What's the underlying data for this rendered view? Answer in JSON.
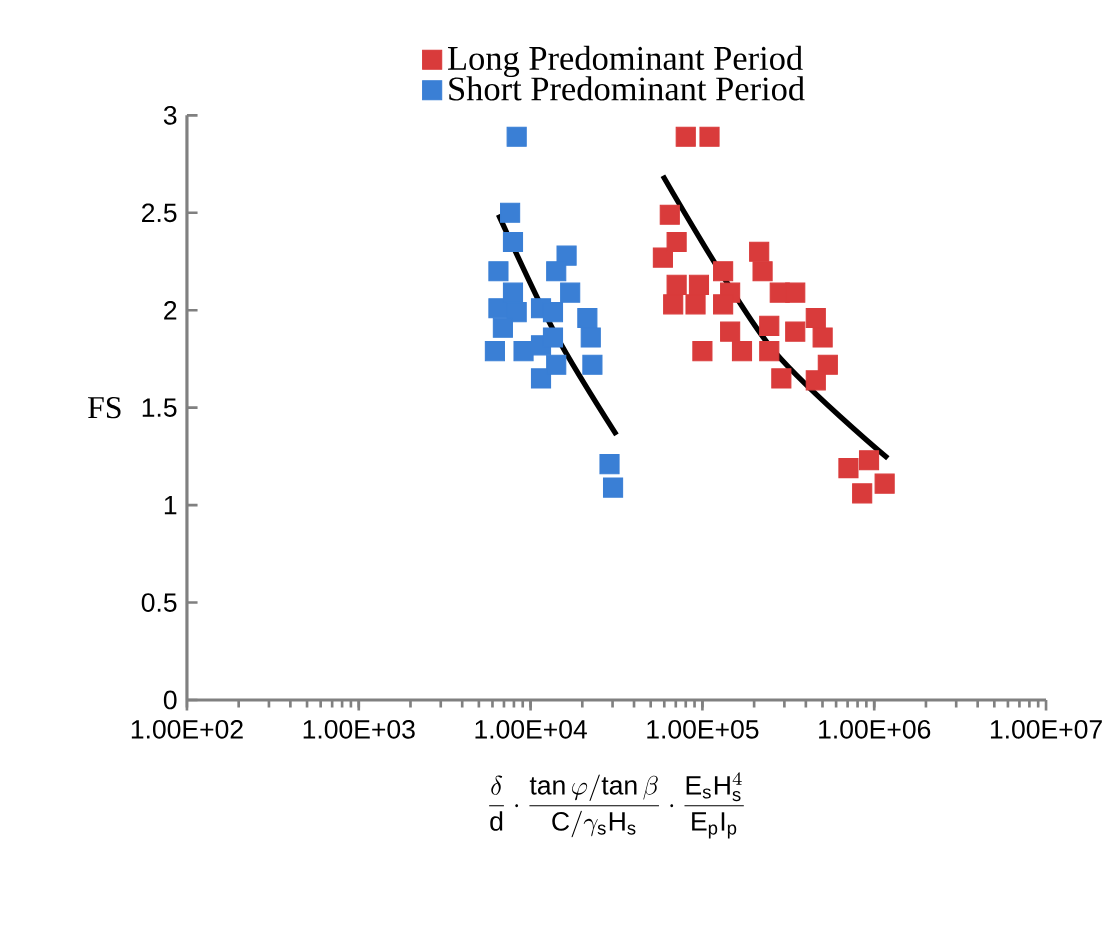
{
  "chart_data": {
    "type": "scatter",
    "xlabel": "\\frac{\\mathrm{\\delta}}{\\mathrm{d}}\\cdot\\frac{\\mathrm{tan}\\,\\varphi/\\mathrm{tan}\\,\\beta}{\\mathrm{C}/\\gamma_{\\mathrm{s}}\\mathrm{H}_{\\mathrm{s}}}\\cdot\\frac{\\mathrm{E}_{\\mathrm{s}}\\mathrm{H}_{\\mathrm{s}}^{4}}{\\mathrm{E}_{\\mathrm{p}}\\mathrm{I}_{\\mathrm{p}}}",
    "ylabel": "FS",
    "log": "x",
    "marker": "square",
    "legend": "top",
    "xlim": [
      100,
      10000000
    ],
    "ylim": [
      0,
      3
    ],
    "xticks": [
      {
        "value": 100,
        "label": "1.00E+02"
      },
      {
        "value": 1000,
        "label": "1.00E+03"
      },
      {
        "value": 10000,
        "label": "1.00E+04"
      },
      {
        "value": 100000,
        "label": "1.00E+05"
      },
      {
        "value": 1000000,
        "label": "1.00E+06"
      },
      {
        "value": 10000000,
        "label": "1.00E+07"
      }
    ],
    "yticks": [
      0,
      0.5,
      1,
      1.5,
      2,
      2.5,
      3
    ],
    "series": [
      {
        "name": "Long Predominant Period",
        "color": "#d93b3b",
        "x": [
          80000,
          110000,
          64600,
          58900,
          70800,
          70800,
          67600,
          95500,
          91200,
          132000,
          214000,
          224000,
          145000,
          282000,
          347000,
          145000,
          100000,
          170000,
          245000,
          347000,
          457000,
          501000,
          537000,
          288000,
          457000,
          708000,
          933000,
          851000,
          1150000,
          132000,
          245000
        ],
        "values": [
          2.89,
          2.89,
          2.49,
          2.27,
          2.35,
          2.13,
          2.03,
          2.13,
          2.03,
          2.2,
          2.3,
          2.2,
          2.09,
          2.09,
          2.09,
          1.89,
          1.79,
          1.79,
          1.92,
          1.89,
          1.96,
          1.86,
          1.72,
          1.65,
          1.64,
          1.19,
          1.23,
          1.06,
          1.11,
          2.03,
          1.79
        ]
      },
      {
        "name": "Short Predominant Period",
        "color": "#3a7fd5",
        "x": [
          8300,
          7600,
          7900,
          6500,
          6500,
          7900,
          8300,
          6900,
          6200,
          9100,
          11500,
          11500,
          14100,
          11500,
          13500,
          16200,
          14100,
          17000,
          21400,
          22400,
          22900,
          28800,
          30200,
          13500
        ],
        "values": [
          2.89,
          2.5,
          2.35,
          2.2,
          2.01,
          2.09,
          1.99,
          1.91,
          1.79,
          1.79,
          1.82,
          1.65,
          1.72,
          2.01,
          1.99,
          2.28,
          2.2,
          2.09,
          1.96,
          1.86,
          1.72,
          1.21,
          1.09,
          1.86
        ]
      },
      {
        "type": "line",
        "color": "#000000",
        "marker": "none",
        "x": [
          6500,
          14100,
          31600
        ],
        "values": [
          2.49,
          1.87,
          1.36
        ]
      },
      {
        "type": "line",
        "color": "#000000",
        "marker": "none",
        "x": [
          58900,
          245000,
          1200000
        ],
        "values": [
          2.69,
          1.82,
          1.24
        ]
      }
    ]
  }
}
